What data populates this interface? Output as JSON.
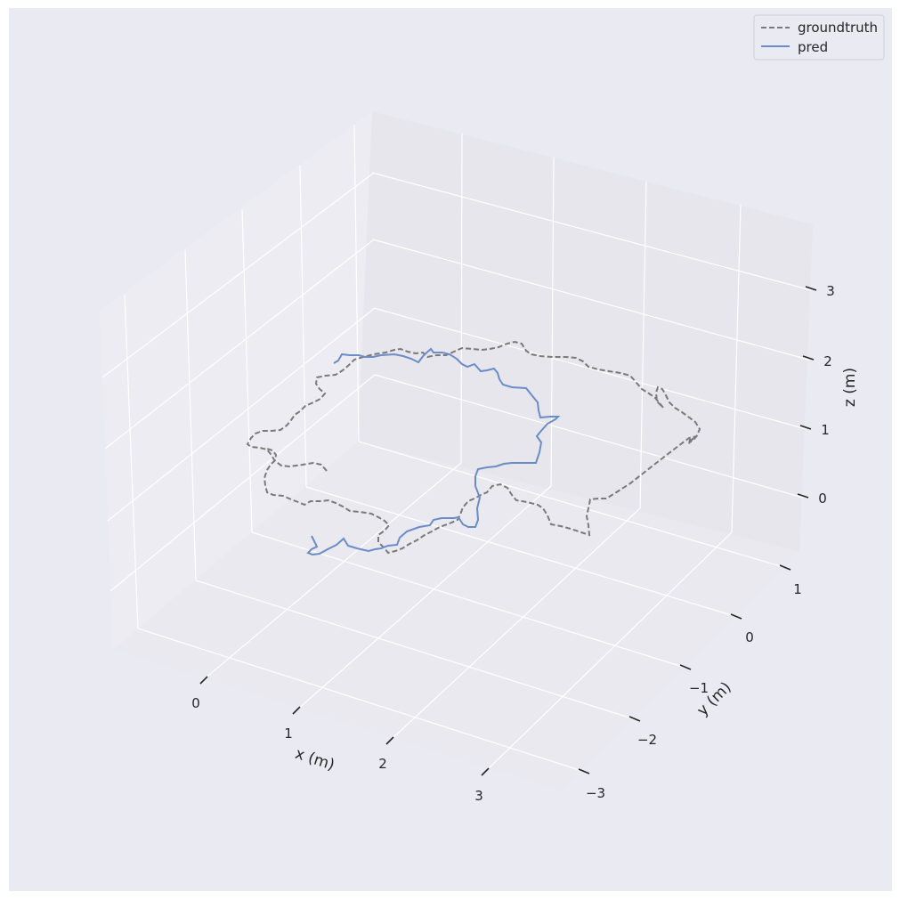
{
  "chart_data": {
    "type": "line3d",
    "title": "",
    "xlabel": "x (m)",
    "ylabel": "y (m)",
    "zlabel": "z (m)",
    "xticks": [
      "0",
      "1",
      "2",
      "3"
    ],
    "yticks": [
      "−3",
      "−2",
      "−1",
      "0",
      "1"
    ],
    "zticks": [
      "0",
      "1",
      "2",
      "3"
    ],
    "legend_position": "top-right",
    "grid": true,
    "series": [
      {
        "name": "groundtruth",
        "color": "#7a7a7a",
        "style": "dashed",
        "description": "closed-loop ground-truth trajectory"
      },
      {
        "name": "pred",
        "color": "#6b8cc7",
        "style": "solid",
        "description": "predicted trajectory"
      }
    ]
  }
}
